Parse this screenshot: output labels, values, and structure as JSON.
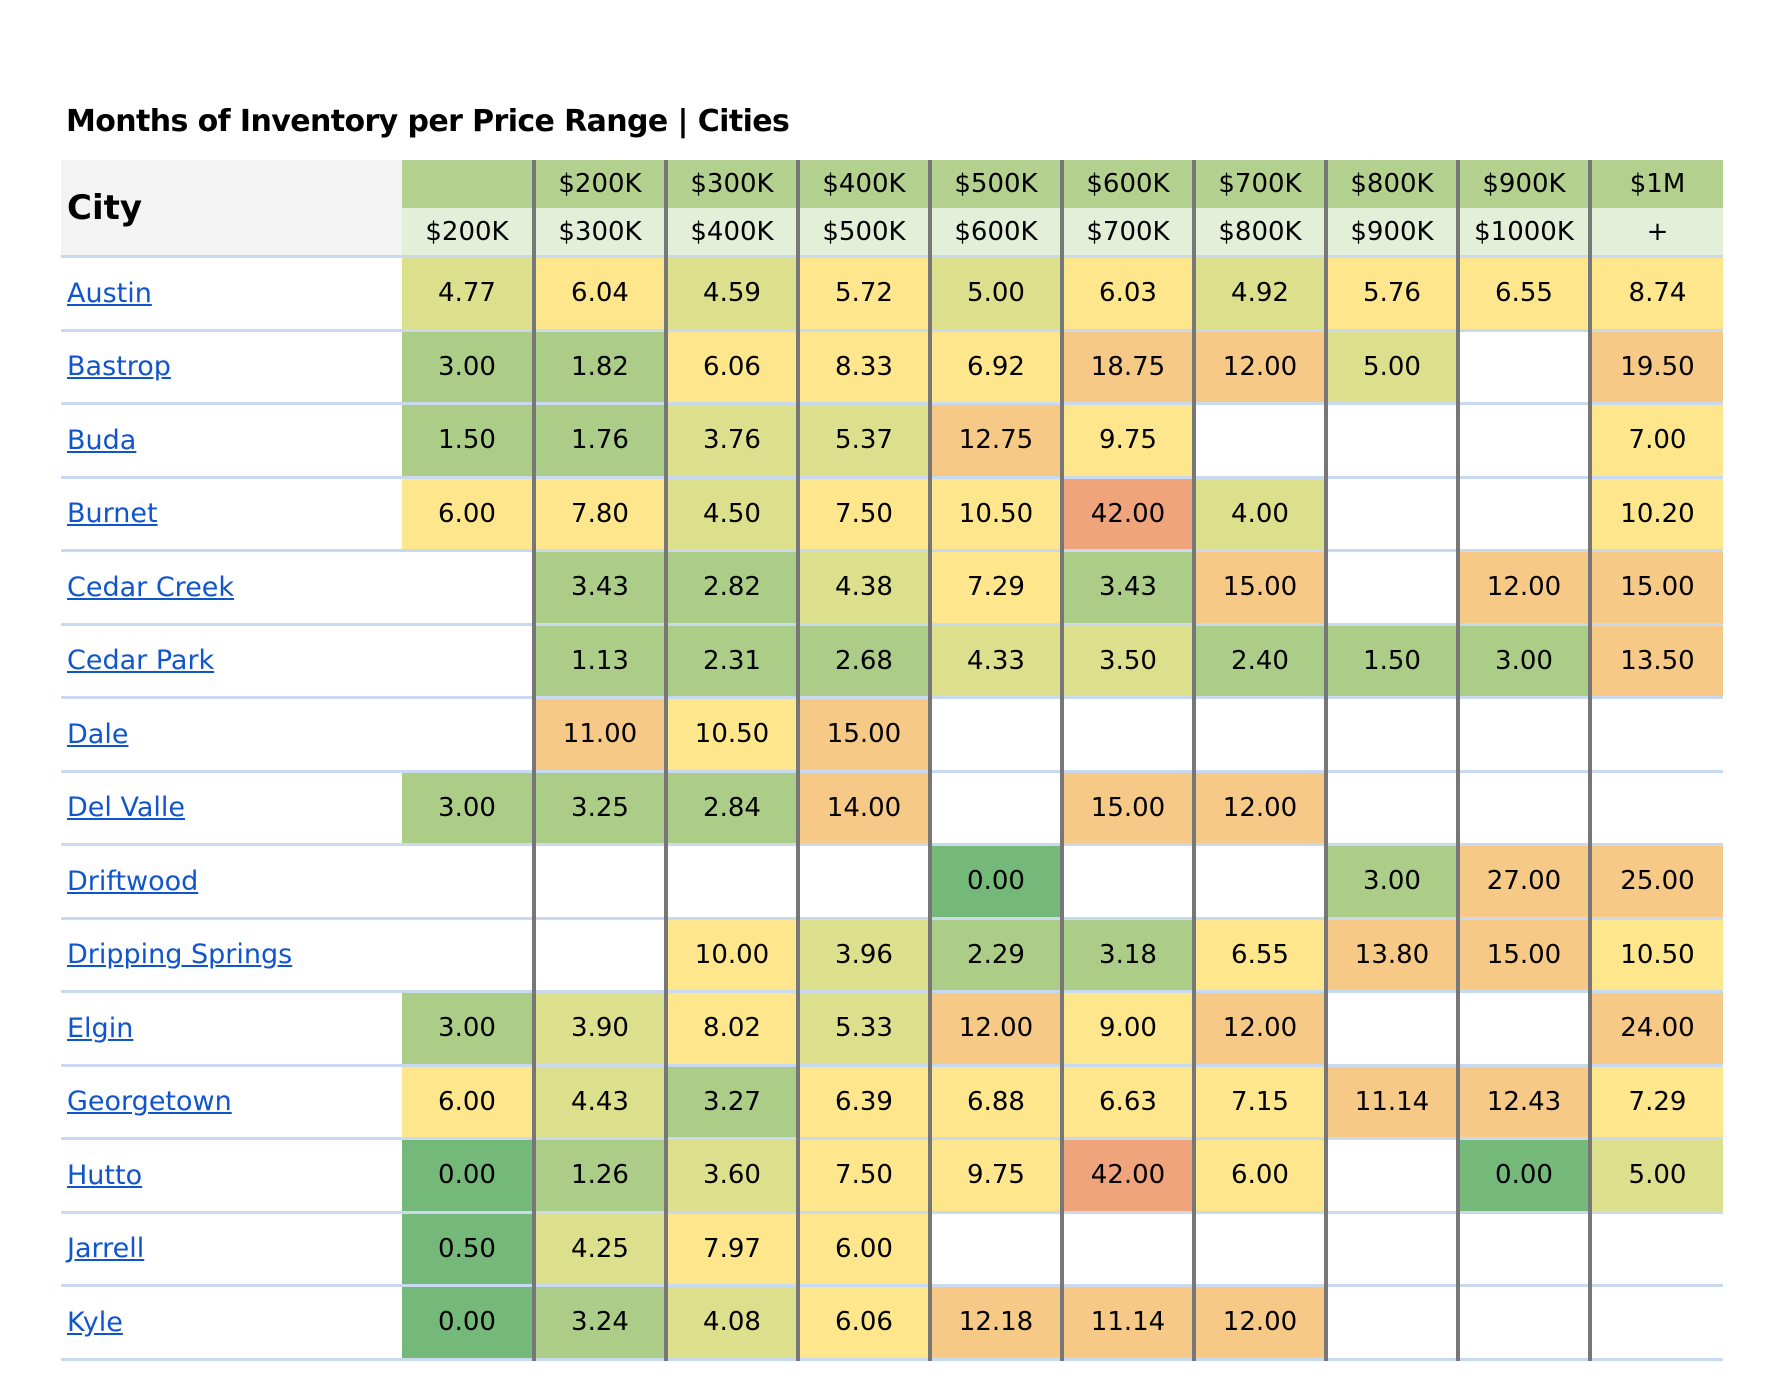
{
  "title": "Months of Inventory per Price Range | Cities",
  "columns": {
    "city_label": "City",
    "top": [
      "",
      "$200K",
      "$300K",
      "$400K",
      "$500K",
      "$600K",
      "$700K",
      "$800K",
      "$900K",
      "$1M"
    ],
    "bottom": [
      "$200K",
      "$300K",
      "$400K",
      "$500K",
      "$600K",
      "$700K",
      "$800K",
      "$900K",
      "$1000K",
      "+"
    ]
  },
  "colors": {
    "header_dark": "#b3d08f",
    "header_light": "#e4efda",
    "scale": [
      "#74b97a",
      "#abcd88",
      "#dce08d",
      "#fde68b",
      "#f7c987",
      "#f0a47c"
    ]
  },
  "rows": [
    {
      "city": "Austin",
      "values": [
        "4.77",
        "6.04",
        "4.59",
        "5.72",
        "5.00",
        "6.03",
        "4.92",
        "5.76",
        "6.55",
        "8.74"
      ]
    },
    {
      "city": "Bastrop",
      "values": [
        "3.00",
        "1.82",
        "6.06",
        "8.33",
        "6.92",
        "18.75",
        "12.00",
        "5.00",
        "",
        "19.50"
      ]
    },
    {
      "city": "Buda",
      "values": [
        "1.50",
        "1.76",
        "3.76",
        "5.37",
        "12.75",
        "9.75",
        "",
        "",
        "",
        "7.00"
      ]
    },
    {
      "city": "Burnet",
      "values": [
        "6.00",
        "7.80",
        "4.50",
        "7.50",
        "10.50",
        "42.00",
        "4.00",
        "",
        "",
        "10.20"
      ]
    },
    {
      "city": "Cedar Creek",
      "values": [
        "",
        "3.43",
        "2.82",
        "4.38",
        "7.29",
        "3.43",
        "15.00",
        "",
        "12.00",
        "15.00"
      ]
    },
    {
      "city": "Cedar Park",
      "values": [
        "",
        "1.13",
        "2.31",
        "2.68",
        "4.33",
        "3.50",
        "2.40",
        "1.50",
        "3.00",
        "13.50"
      ]
    },
    {
      "city": "Dale",
      "values": [
        "",
        "11.00",
        "10.50",
        "15.00",
        "",
        "",
        "",
        "",
        "",
        ""
      ]
    },
    {
      "city": "Del Valle",
      "values": [
        "3.00",
        "3.25",
        "2.84",
        "14.00",
        "",
        "15.00",
        "12.00",
        "",
        "",
        ""
      ]
    },
    {
      "city": "Driftwood",
      "values": [
        "",
        "",
        "",
        "",
        "0.00",
        "",
        "",
        "3.00",
        "27.00",
        "25.00"
      ]
    },
    {
      "city": "Dripping Springs",
      "values": [
        "",
        "",
        "10.00",
        "3.96",
        "2.29",
        "3.18",
        "6.55",
        "13.80",
        "15.00",
        "10.50"
      ]
    },
    {
      "city": "Elgin",
      "values": [
        "3.00",
        "3.90",
        "8.02",
        "5.33",
        "12.00",
        "9.00",
        "12.00",
        "",
        "",
        "24.00"
      ]
    },
    {
      "city": "Georgetown",
      "values": [
        "6.00",
        "4.43",
        "3.27",
        "6.39",
        "6.88",
        "6.63",
        "7.15",
        "11.14",
        "12.43",
        "7.29"
      ]
    },
    {
      "city": "Hutto",
      "values": [
        "0.00",
        "1.26",
        "3.60",
        "7.50",
        "9.75",
        "42.00",
        "6.00",
        "",
        "0.00",
        "5.00"
      ]
    },
    {
      "city": "Jarrell",
      "values": [
        "0.50",
        "4.25",
        "7.97",
        "6.00",
        "",
        "",
        "",
        "",
        "",
        ""
      ]
    },
    {
      "city": "Kyle",
      "values": [
        "0.00",
        "3.24",
        "4.08",
        "6.06",
        "12.18",
        "11.14",
        "12.00",
        "",
        "",
        ""
      ]
    }
  ]
}
